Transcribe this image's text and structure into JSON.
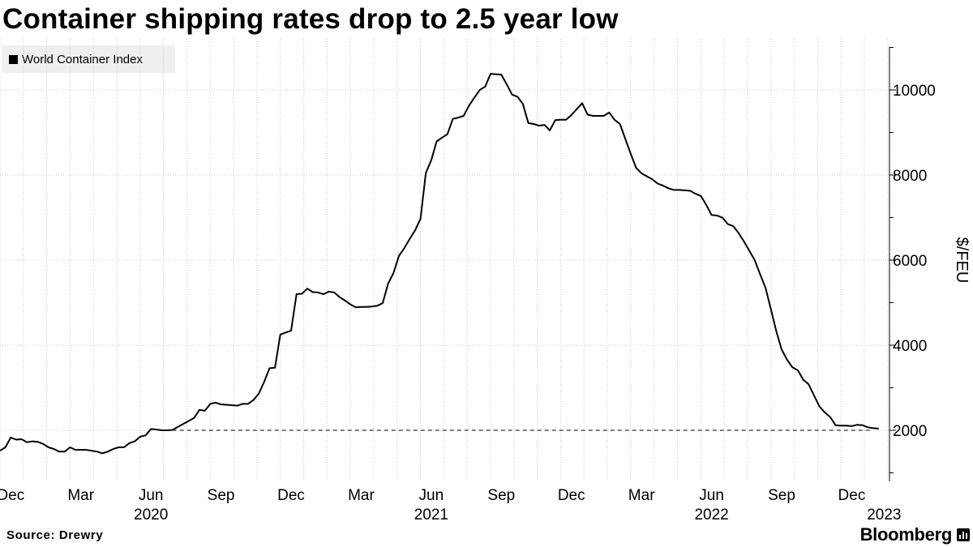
{
  "header": {
    "title": "Container shipping rates drop to 2.5 year low"
  },
  "legend": {
    "label": "World Container Index",
    "color": "#000000"
  },
  "footer": {
    "source": "Source: Drewry",
    "brand": "Bloomberg"
  },
  "colors": {
    "line": "#000000",
    "grid": "#c8c8c8",
    "legend_bg": "#efefef"
  },
  "chart_data": {
    "type": "line",
    "title": "Container shipping rates drop to 2.5 year low",
    "xlabel": "",
    "ylabel": "$/FEU",
    "ylim": [
      800,
      11200
    ],
    "yticks": [
      2000,
      4000,
      6000,
      8000,
      10000
    ],
    "y_axis_side": "right",
    "grid": true,
    "legend_position": "top-left",
    "x_unit": "weeks since 2019-12-05",
    "xlim": [
      0,
      165
    ],
    "x_tick_labels": [
      {
        "label": "Dec",
        "x": 2
      },
      {
        "label": "Mar",
        "x": 15
      },
      {
        "label": "Jun",
        "x": 28
      },
      {
        "label": "Sep",
        "x": 41
      },
      {
        "label": "Dec",
        "x": 54
      },
      {
        "label": "Mar",
        "x": 67
      },
      {
        "label": "Jun",
        "x": 80
      },
      {
        "label": "Sep",
        "x": 93
      },
      {
        "label": "Dec",
        "x": 106
      },
      {
        "label": "Mar",
        "x": 119
      },
      {
        "label": "Jun",
        "x": 132
      },
      {
        "label": "Sep",
        "x": 145
      },
      {
        "label": "Dec",
        "x": 158
      }
    ],
    "x_year_labels": [
      {
        "label": "2020",
        "x": 28
      },
      {
        "label": "2021",
        "x": 80
      },
      {
        "label": "2022",
        "x": 132
      },
      {
        "label": "2023",
        "x": 164
      }
    ],
    "reference_line": {
      "y": 2000,
      "style": "dashed",
      "from_x": 32
    },
    "series": [
      {
        "name": "World Container Index",
        "x": [
          0,
          1,
          2,
          3,
          4,
          5,
          6,
          7,
          8,
          9,
          10,
          11,
          12,
          13,
          14,
          15,
          16,
          17,
          18,
          19,
          20,
          21,
          22,
          23,
          24,
          25,
          26,
          27,
          28,
          29,
          30,
          31,
          32,
          33,
          34,
          35,
          36,
          37,
          38,
          39,
          40,
          41,
          42,
          43,
          44,
          45,
          46,
          47,
          48,
          49,
          50,
          51,
          52,
          53,
          54,
          55,
          56,
          57,
          58,
          59,
          60,
          61,
          62,
          63,
          64,
          65,
          66,
          67,
          68,
          69,
          70,
          71,
          72,
          73,
          74,
          75,
          76,
          77,
          78,
          79,
          80,
          81,
          82,
          83,
          84,
          85,
          86,
          87,
          88,
          89,
          90,
          91,
          92,
          93,
          94,
          95,
          96,
          97,
          98,
          99,
          100,
          101,
          102,
          103,
          104,
          105,
          106,
          107,
          108,
          109,
          110,
          111,
          112,
          113,
          114,
          115,
          116,
          117,
          118,
          119,
          120,
          121,
          122,
          123,
          124,
          125,
          126,
          127,
          128,
          129,
          130,
          131,
          132,
          133,
          134,
          135,
          136,
          137,
          138,
          139,
          140,
          141,
          142,
          143,
          144,
          145,
          146,
          147,
          148,
          149,
          150,
          151,
          152,
          153,
          154,
          155,
          156,
          157,
          158,
          159,
          160,
          161,
          162,
          163
        ],
        "values": [
          1520,
          1600,
          1830,
          1780,
          1790,
          1720,
          1740,
          1730,
          1680,
          1600,
          1560,
          1500,
          1500,
          1600,
          1540,
          1540,
          1540,
          1520,
          1500,
          1460,
          1500,
          1560,
          1600,
          1600,
          1700,
          1740,
          1850,
          1880,
          2030,
          2020,
          2000,
          2000,
          2010,
          2080,
          2150,
          2220,
          2290,
          2480,
          2460,
          2620,
          2650,
          2610,
          2600,
          2590,
          2580,
          2620,
          2620,
          2710,
          2860,
          3140,
          3460,
          3470,
          4250,
          4300,
          4340,
          5200,
          5210,
          5330,
          5250,
          5240,
          5200,
          5260,
          5240,
          5130,
          5050,
          4960,
          4890,
          4900,
          4900,
          4910,
          4930,
          4990,
          5450,
          5700,
          6100,
          6280,
          6500,
          6700,
          6970,
          8050,
          8350,
          8790,
          8880,
          8960,
          9320,
          9350,
          9390,
          9630,
          9820,
          10000,
          10080,
          10380,
          10370,
          10360,
          10130,
          9890,
          9840,
          9670,
          9220,
          9200,
          9160,
          9180,
          9050,
          9290,
          9300,
          9300,
          9410,
          9550,
          9690,
          9420,
          9390,
          9390,
          9390,
          9470,
          9300,
          9200,
          8850,
          8500,
          8170,
          8040,
          7970,
          7900,
          7800,
          7750,
          7690,
          7650,
          7650,
          7640,
          7630,
          7560,
          7510,
          7300,
          7060,
          7050,
          7000,
          6850,
          6800,
          6640,
          6440,
          6220,
          6000,
          5670,
          5350,
          4850,
          4330,
          3900,
          3660,
          3480,
          3410,
          3190,
          3080,
          2820,
          2560,
          2420,
          2310,
          2120,
          2110,
          2110,
          2100,
          2130,
          2120,
          2070,
          2050,
          2040
        ]
      }
    ]
  }
}
